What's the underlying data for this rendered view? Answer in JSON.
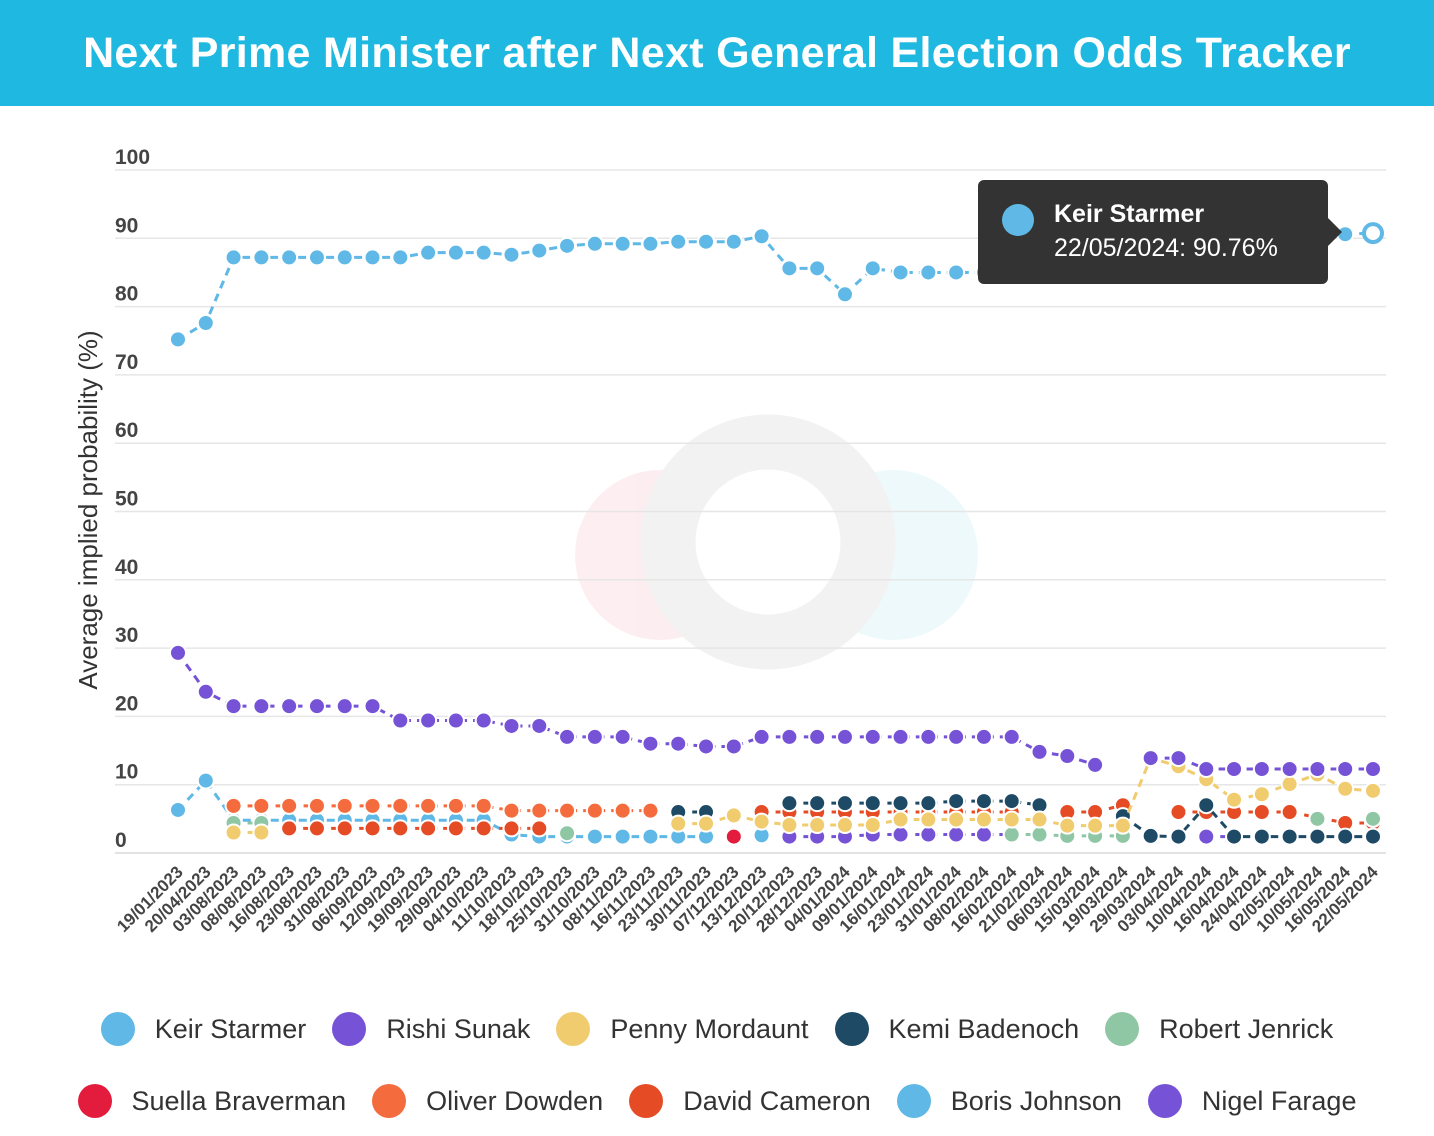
{
  "header": {
    "title": "Next Prime Minister after Next General Election Odds Tracker"
  },
  "tooltip": {
    "name": "Keir Starmer",
    "value": "22/05/2024: 90.76%",
    "color": "#5fb8e6"
  },
  "chart_data": {
    "type": "line",
    "ylabel": "Average implied probability (%)",
    "xlabel": "",
    "ylim": [
      0,
      100
    ],
    "yticks": [
      0,
      10,
      20,
      30,
      40,
      50,
      60,
      70,
      80,
      90,
      100
    ],
    "categories": [
      "19/01/2023",
      "20/04/2023",
      "03/08/2023",
      "08/08/2023",
      "16/08/2023",
      "23/08/2023",
      "31/08/2023",
      "06/09/2023",
      "12/09/2023",
      "19/09/2023",
      "29/09/2023",
      "04/10/2023",
      "11/10/2023",
      "18/10/2023",
      "25/10/2023",
      "31/10/2023",
      "08/11/2023",
      "16/11/2023",
      "23/11/2023",
      "30/11/2023",
      "07/12/2023",
      "13/12/2023",
      "20/12/2023",
      "28/12/2023",
      "04/01/2024",
      "09/01/2024",
      "16/01/2024",
      "23/01/2024",
      "31/01/2024",
      "08/02/2024",
      "16/02/2024",
      "21/02/2024",
      "06/03/2024",
      "15/03/2024",
      "19/03/2024",
      "29/03/2024",
      "03/04/2024",
      "10/04/2024",
      "16/04/2024",
      "24/04/2024",
      "02/05/2024",
      "10/05/2024",
      "16/05/2024",
      "22/05/2024"
    ],
    "series": [
      {
        "name": "Keir Starmer",
        "color": "#5fb8e6",
        "values": [
          75.2,
          77.6,
          87.2,
          87.2,
          87.2,
          87.2,
          87.2,
          87.2,
          87.2,
          87.9,
          87.9,
          87.9,
          87.6,
          88.2,
          88.9,
          89.2,
          89.2,
          89.2,
          89.5,
          89.5,
          89.5,
          90.3,
          85.6,
          85.6,
          81.8,
          85.6,
          85.0,
          85.0,
          85.0,
          85.0,
          85.0,
          null,
          null,
          null,
          null,
          null,
          null,
          null,
          null,
          null,
          null,
          null,
          90.6,
          90.76
        ]
      },
      {
        "name": "Rishi Sunak",
        "color": "#7552d6",
        "values": [
          29.3,
          23.6,
          21.5,
          21.5,
          21.5,
          21.5,
          21.5,
          21.5,
          19.4,
          19.4,
          19.4,
          19.4,
          18.6,
          18.6,
          17.0,
          17.0,
          17.0,
          16.0,
          16.0,
          15.6,
          15.6,
          17.0,
          17.0,
          17.0,
          17.0,
          17.0,
          17.0,
          17.0,
          17.0,
          17.0,
          17.0,
          14.8,
          14.2,
          12.9,
          null,
          13.9,
          13.9,
          12.3,
          12.3,
          12.3,
          12.3,
          12.3,
          12.3,
          12.3
        ]
      },
      {
        "name": "Penny Mordaunt",
        "color": "#f0cc6e",
        "values": [
          null,
          null,
          3.0,
          3.0,
          null,
          null,
          null,
          null,
          null,
          null,
          null,
          null,
          null,
          null,
          null,
          null,
          null,
          null,
          4.3,
          4.3,
          5.5,
          4.6,
          4.1,
          4.1,
          4.1,
          4.1,
          4.9,
          4.9,
          4.9,
          4.9,
          4.9,
          4.9,
          4.0,
          4.0,
          4.0,
          13.9,
          12.7,
          10.8,
          7.8,
          8.6,
          10.1,
          11.5,
          9.4,
          9.1
        ]
      },
      {
        "name": "Kemi Badenoch",
        "color": "#1e4a66",
        "values": [
          null,
          null,
          null,
          null,
          null,
          null,
          null,
          null,
          null,
          null,
          null,
          null,
          null,
          null,
          null,
          null,
          null,
          null,
          6.0,
          6.0,
          null,
          null,
          7.3,
          7.3,
          7.3,
          7.3,
          7.3,
          7.3,
          7.6,
          7.6,
          7.6,
          7.0,
          null,
          null,
          5.4,
          2.5,
          2.4,
          7.0,
          2.4,
          2.4,
          2.4,
          2.4,
          2.4,
          2.4
        ]
      },
      {
        "name": "Robert Jenrick",
        "color": "#8fc7a5",
        "values": [
          null,
          null,
          4.4,
          4.4,
          null,
          null,
          null,
          null,
          null,
          null,
          null,
          null,
          null,
          null,
          2.9,
          null,
          null,
          null,
          null,
          null,
          null,
          null,
          null,
          null,
          null,
          null,
          null,
          null,
          null,
          null,
          2.7,
          2.7,
          2.5,
          2.5,
          2.5,
          null,
          null,
          null,
          null,
          null,
          null,
          5.0,
          null,
          5.0
        ]
      },
      {
        "name": "Suella Braverman",
        "color": "#e31b3c",
        "values": [
          null,
          null,
          null,
          null,
          null,
          null,
          null,
          null,
          null,
          null,
          null,
          null,
          null,
          null,
          null,
          null,
          null,
          null,
          null,
          null,
          2.4,
          null,
          null,
          null,
          null,
          null,
          null,
          null,
          null,
          null,
          null,
          null,
          null,
          null,
          null,
          null,
          null,
          null,
          null,
          null,
          null,
          null,
          null,
          null
        ]
      },
      {
        "name": "Oliver Dowden",
        "color": "#f46b3d",
        "values": [
          null,
          null,
          6.9,
          6.9,
          6.9,
          6.9,
          6.9,
          6.9,
          6.9,
          6.9,
          6.9,
          6.9,
          6.2,
          6.2,
          6.2,
          6.2,
          6.2,
          6.2,
          null,
          null,
          null,
          null,
          null,
          null,
          null,
          null,
          null,
          null,
          null,
          null,
          null,
          null,
          null,
          null,
          null,
          null,
          null,
          null,
          null,
          null,
          null,
          null,
          null,
          null
        ]
      },
      {
        "name": "David Cameron",
        "color": "#e54b24",
        "values": [
          null,
          null,
          null,
          null,
          3.6,
          3.6,
          3.6,
          3.6,
          3.6,
          3.6,
          3.6,
          3.6,
          3.6,
          3.6,
          null,
          null,
          null,
          null,
          null,
          null,
          null,
          6.0,
          6.0,
          6.0,
          6.0,
          6.0,
          6.0,
          6.0,
          6.0,
          6.0,
          6.0,
          null,
          6.0,
          6.0,
          7.0,
          null,
          6.0,
          6.0,
          6.0,
          6.0,
          6.0,
          5.2,
          4.4,
          4.4
        ]
      },
      {
        "name": "Boris Johnson",
        "color": "#5fb8e6",
        "values": [
          6.3,
          10.6,
          4.8,
          4.8,
          4.8,
          4.8,
          4.8,
          4.8,
          4.8,
          4.8,
          4.8,
          4.8,
          2.7,
          2.4,
          2.4,
          2.4,
          2.4,
          2.4,
          2.4,
          2.4,
          null,
          2.6,
          null,
          null,
          null,
          null,
          null,
          null,
          null,
          null,
          null,
          null,
          null,
          null,
          null,
          null,
          null,
          null,
          null,
          null,
          null,
          null,
          null,
          null
        ]
      },
      {
        "name": "Nigel Farage",
        "color": "#7552d6",
        "values": [
          null,
          null,
          null,
          null,
          null,
          null,
          null,
          null,
          null,
          null,
          null,
          null,
          null,
          null,
          null,
          null,
          null,
          null,
          null,
          null,
          null,
          null,
          2.4,
          2.4,
          2.4,
          2.7,
          2.7,
          2.7,
          2.7,
          2.7,
          2.7,
          null,
          null,
          null,
          null,
          null,
          null,
          2.4,
          2.4,
          null,
          null,
          null,
          null,
          null
        ]
      }
    ],
    "legend": {
      "placement": "bottom"
    }
  }
}
